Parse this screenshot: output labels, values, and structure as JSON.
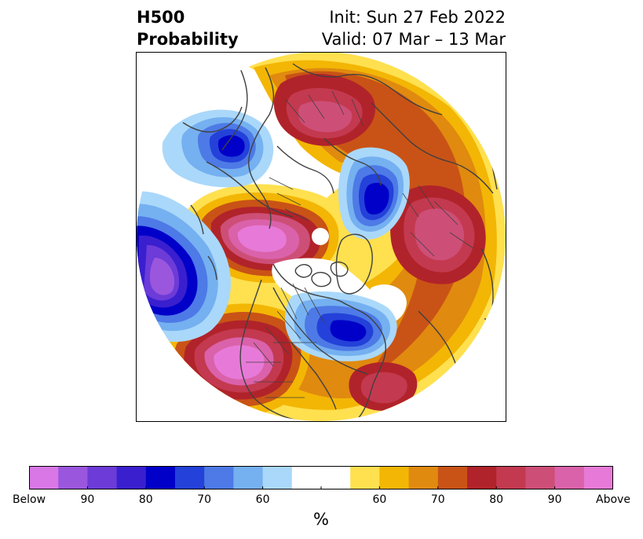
{
  "title": {
    "left_line1": "H500",
    "left_line2": "Probability",
    "right_line1": "Init: Sun 27 Feb 2022",
    "right_line2": "Valid: 07 Mar – 13 Mar"
  },
  "colorbar": {
    "colors": [
      "#d977e6",
      "#9b56de",
      "#6c3bd8",
      "#3a1fcf",
      "#0000c8",
      "#2441d9",
      "#4d7ae6",
      "#75b0f0",
      "#aad8fa",
      "#ffffff",
      "#ffffff",
      "#ffe04f",
      "#f3b605",
      "#e08a0f",
      "#c95316",
      "#b1232a",
      "#c3394f",
      "#cd4f77",
      "#da62aa",
      "#e77ad8"
    ],
    "tick_labels": [
      "Below",
      "90",
      "80",
      "70",
      "60",
      "",
      "60",
      "70",
      "80",
      "90",
      "Above"
    ],
    "unit_label": "%"
  },
  "map": {
    "land_color": "none",
    "coast_color": "#404040"
  }
}
